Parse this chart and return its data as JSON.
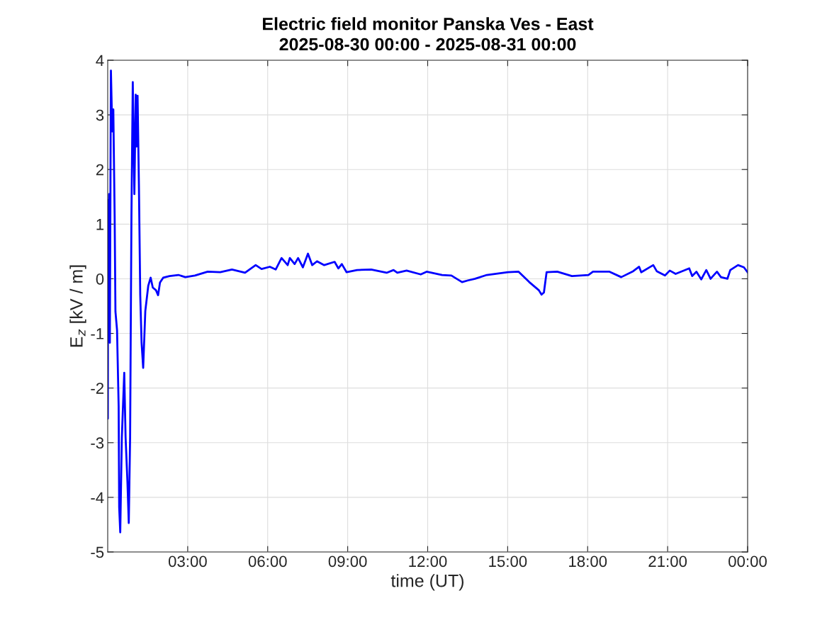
{
  "chart_data": {
    "type": "line",
    "title": "Electric field monitor Panska Ves - East\n2025-08-30 00:00 - 2025-08-31 00:00",
    "xlabel": "time (UT)",
    "ylabel": "E$_{z}$ [kV / m]",
    "xlim": [
      0,
      24
    ],
    "xticks": [
      {
        "value": 3,
        "label": "03:00"
      },
      {
        "value": 6,
        "label": "06:00"
      },
      {
        "value": 9,
        "label": "09:00"
      },
      {
        "value": 12,
        "label": "12:00"
      },
      {
        "value": 15,
        "label": "15:00"
      },
      {
        "value": 18,
        "label": "18:00"
      },
      {
        "value": 21,
        "label": "21:00"
      },
      {
        "value": 24,
        "label": "00:00"
      }
    ],
    "ylim": [
      -5,
      4
    ],
    "yticks": [
      -5,
      -4,
      -3,
      -2,
      -1,
      0,
      1,
      2,
      3,
      4
    ],
    "grid": true,
    "series": [
      {
        "color": "#0000ff",
        "x": [
          0.0,
          0.005,
          0.01,
          0.05,
          0.08,
          0.12,
          0.17,
          0.21,
          0.26,
          0.29,
          0.35,
          0.41,
          0.43,
          0.47,
          0.53,
          0.62,
          0.67,
          0.74,
          0.79,
          0.84,
          0.89,
          0.94,
          1.0,
          1.05,
          1.08,
          1.12,
          1.17,
          1.22,
          1.27,
          1.33,
          1.41,
          1.52,
          1.61,
          1.69,
          1.81,
          1.89,
          1.96,
          2.08,
          2.32,
          2.65,
          2.91,
          3.27,
          3.75,
          4.22,
          4.66,
          5.15,
          5.55,
          5.77,
          6.08,
          6.3,
          6.52,
          6.75,
          6.83,
          7.01,
          7.14,
          7.32,
          7.51,
          7.67,
          7.85,
          8.12,
          8.51,
          8.65,
          8.78,
          8.96,
          9.35,
          9.88,
          10.46,
          10.72,
          10.86,
          11.21,
          11.74,
          11.96,
          12.54,
          12.89,
          13.29,
          13.51,
          13.78,
          14.22,
          15.01,
          15.41,
          15.81,
          16.17,
          16.27,
          16.36,
          16.46,
          16.86,
          17.41,
          18.03,
          18.2,
          18.82,
          19.26,
          19.71,
          19.93,
          20.01,
          20.46,
          20.59,
          20.9,
          21.08,
          21.3,
          21.81,
          21.92,
          22.08,
          22.26,
          22.45,
          22.61,
          22.85,
          23.0,
          23.24,
          23.35,
          23.64,
          23.86,
          24.0
        ],
        "values": [
          1.44,
          -2.56,
          -0.01,
          1.55,
          -1.17,
          3.81,
          2.7,
          3.1,
          1.15,
          -0.6,
          -0.94,
          -2.33,
          -4.18,
          -4.64,
          -2.9,
          -1.72,
          -2.9,
          -3.72,
          -4.47,
          -2.9,
          1.15,
          3.6,
          1.55,
          3.37,
          2.42,
          3.35,
          1.73,
          -0.3,
          -1.17,
          -1.63,
          -0.59,
          -0.13,
          0.02,
          -0.16,
          -0.21,
          -0.3,
          -0.07,
          0.02,
          0.05,
          0.07,
          0.03,
          0.06,
          0.13,
          0.12,
          0.17,
          0.11,
          0.25,
          0.18,
          0.22,
          0.17,
          0.38,
          0.25,
          0.38,
          0.27,
          0.38,
          0.21,
          0.46,
          0.25,
          0.32,
          0.25,
          0.31,
          0.19,
          0.27,
          0.12,
          0.16,
          0.17,
          0.11,
          0.16,
          0.11,
          0.15,
          0.08,
          0.13,
          0.07,
          0.06,
          -0.06,
          -0.03,
          0.0,
          0.07,
          0.12,
          0.13,
          -0.06,
          -0.21,
          -0.29,
          -0.25,
          0.12,
          0.13,
          0.05,
          0.07,
          0.13,
          0.13,
          0.03,
          0.14,
          0.22,
          0.12,
          0.25,
          0.14,
          0.06,
          0.15,
          0.09,
          0.19,
          0.05,
          0.13,
          -0.01,
          0.16,
          0.0,
          0.13,
          0.03,
          0.0,
          0.16,
          0.25,
          0.21,
          0.12
        ]
      }
    ]
  }
}
